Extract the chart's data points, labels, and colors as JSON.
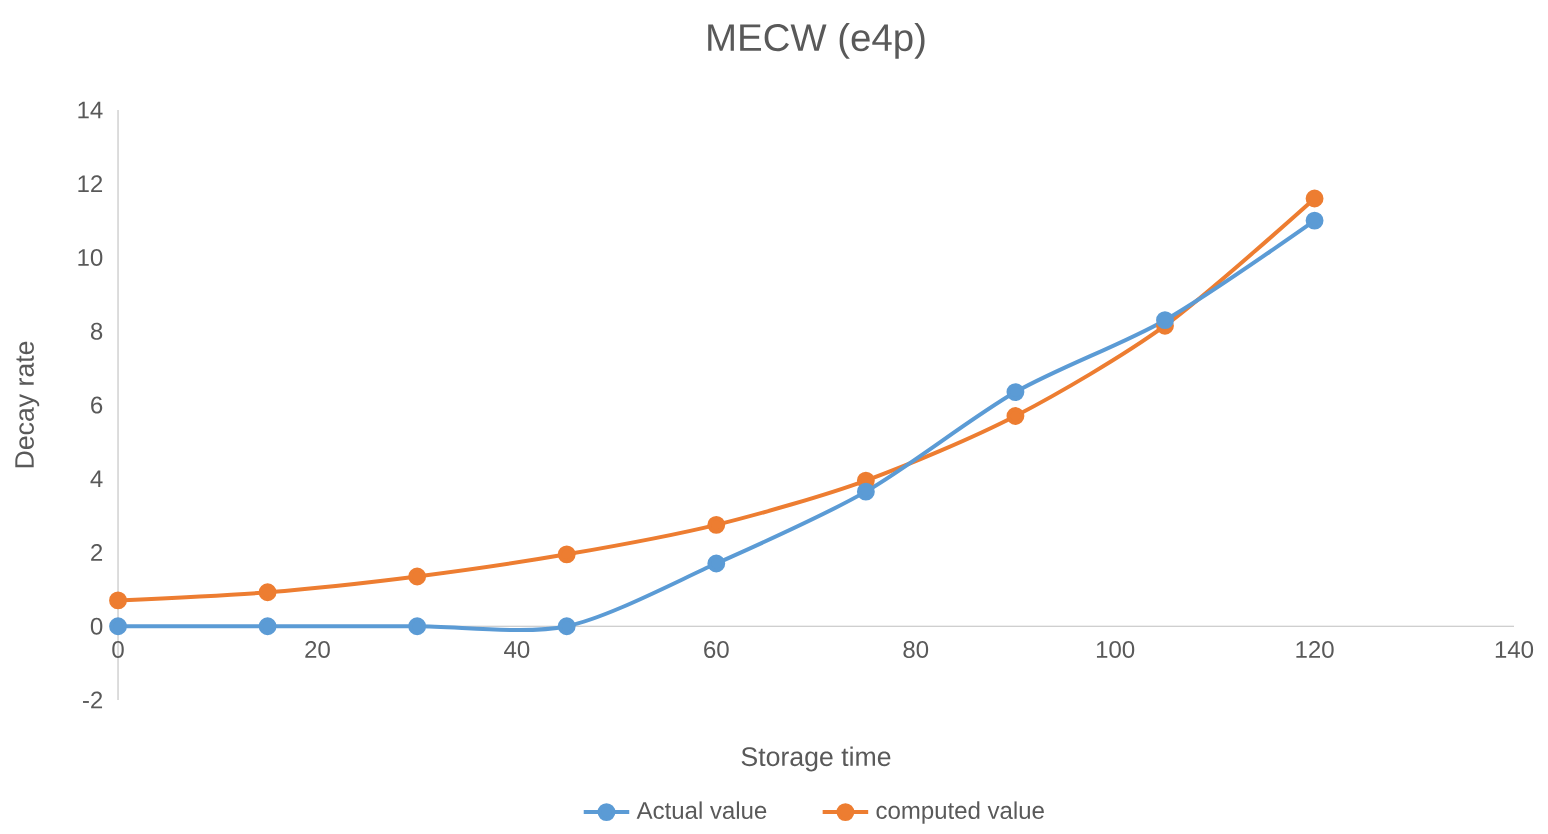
{
  "chart_data": {
    "type": "line",
    "title": "MECW (e4p)",
    "xlabel": "Storage time",
    "ylabel": "Decay rate",
    "x": [
      0,
      15,
      30,
      45,
      60,
      75,
      90,
      105,
      120
    ],
    "series": [
      {
        "name": "Actual value",
        "color": "#5b9bd5",
        "values": [
          0,
          0,
          0,
          0,
          1.7,
          3.65,
          6.35,
          8.3,
          11.0
        ]
      },
      {
        "name": "computed value",
        "color": "#ed7d31",
        "values": [
          0.7,
          0.92,
          1.35,
          1.95,
          2.75,
          3.95,
          5.7,
          8.15,
          11.6
        ]
      }
    ],
    "xlim": [
      0,
      140
    ],
    "xticks": [
      0,
      20,
      40,
      60,
      80,
      100,
      120,
      140
    ],
    "ylim": [
      -2,
      14
    ],
    "yticks": [
      -2,
      0,
      2,
      4,
      6,
      8,
      10,
      12,
      14
    ],
    "legend": "bottom",
    "marker": "circle",
    "line_style": "solid"
  }
}
